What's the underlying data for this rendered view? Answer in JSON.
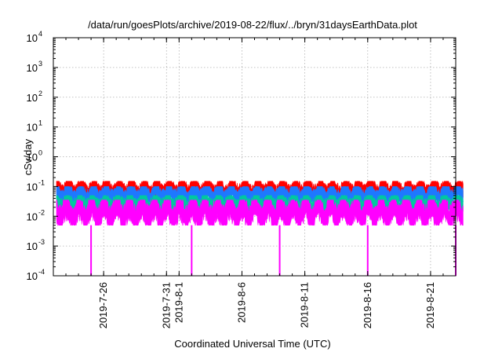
{
  "chart_data": {
    "type": "line",
    "title": "/data/run/goesPlots/archive/2019-08-22/flux/../bryn/31daysEarthData.plot",
    "xlabel": "Coordinated Universal Time (UTC)",
    "ylabel": "cSv/day",
    "yscale": "log",
    "ylim": [
      0.0001,
      10000
    ],
    "xlim": [
      "2019-07-22",
      "2019-08-23"
    ],
    "grid": true,
    "y_ticks": [
      {
        "base": "10",
        "exp": "-4",
        "value": 0.0001
      },
      {
        "base": "10",
        "exp": "-3",
        "value": 0.001
      },
      {
        "base": "10",
        "exp": "-2",
        "value": 0.01
      },
      {
        "base": "10",
        "exp": "-1",
        "value": 0.1
      },
      {
        "base": "10",
        "exp": "0",
        "value": 1
      },
      {
        "base": "10",
        "exp": "1",
        "value": 10
      },
      {
        "base": "10",
        "exp": "2",
        "value": 100
      },
      {
        "base": "10",
        "exp": "3",
        "value": 1000
      },
      {
        "base": "10",
        "exp": "4",
        "value": 10000
      }
    ],
    "x_ticks": [
      {
        "label": "2019-7-26",
        "date": "2019-07-26"
      },
      {
        "label": "2019-7-31",
        "date": "2019-07-31"
      },
      {
        "label": "2019-8-1",
        "date": "2019-08-01"
      },
      {
        "label": "2019-8-6",
        "date": "2019-08-06"
      },
      {
        "label": "2019-8-11",
        "date": "2019-08-11"
      },
      {
        "label": "2019-8-16",
        "date": "2019-08-16"
      },
      {
        "label": "2019-8-21",
        "date": "2019-08-21"
      }
    ],
    "series": [
      {
        "color": "#ff0000",
        "min": 0.04,
        "max": 0.15
      },
      {
        "color": "#1e78ff",
        "min": 0.03,
        "max": 0.1
      },
      {
        "color": "#00c8a0",
        "min": 0.015,
        "max": 0.05
      },
      {
        "color": "#ff00ff",
        "min": 0.005,
        "max": 0.035
      }
    ],
    "dropouts": [
      "2019-07-25",
      "2019-08-02",
      "2019-08-09",
      "2019-08-16",
      "2019-08-23"
    ]
  }
}
